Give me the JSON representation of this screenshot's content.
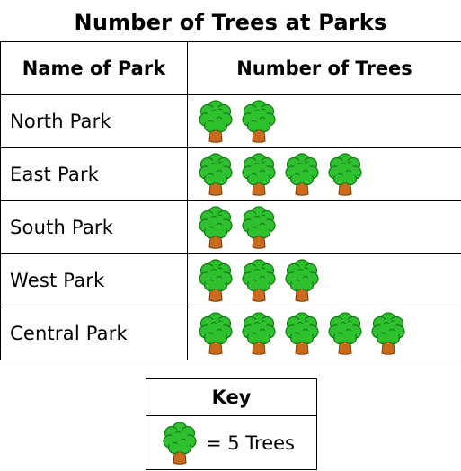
{
  "chart_data": {
    "type": "table",
    "title": "Number of Trees at Parks",
    "columns": [
      "Name of Park",
      "Number of Trees"
    ],
    "rows": [
      {
        "park": "North Park",
        "icons": 2
      },
      {
        "park": "East Park",
        "icons": 4
      },
      {
        "park": "South Park",
        "icons": 2
      },
      {
        "park": "West Park",
        "icons": 3
      },
      {
        "park": "Central Park",
        "icons": 5
      }
    ],
    "key": {
      "title": "Key",
      "text": "= 5 Trees"
    }
  },
  "colors": {
    "foliage": "#2fc02f",
    "foliage_dark": "#147a14",
    "trunk": "#c96a1c",
    "trunk_dark": "#7a3a0a"
  },
  "icon": "tree-icon"
}
